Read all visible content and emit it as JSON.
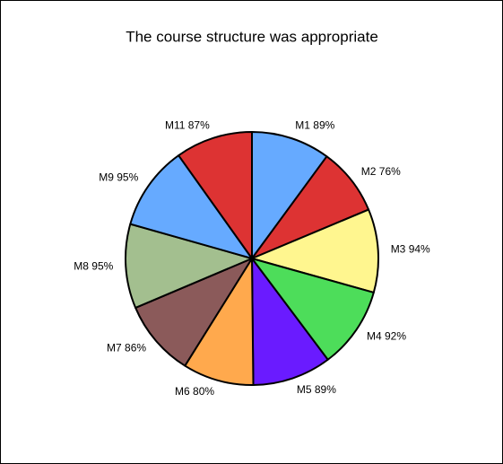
{
  "chart_data": {
    "type": "pie",
    "title": "The course structure was appropriate",
    "categories": [
      "M1",
      "M2",
      "M3",
      "M4",
      "M5",
      "M6",
      "M7",
      "M8",
      "M9",
      "M11"
    ],
    "values": [
      89,
      76,
      94,
      92,
      89,
      80,
      86,
      95,
      95,
      87
    ],
    "value_labels": [
      "89%",
      "76%",
      "94%",
      "92%",
      "89%",
      "80%",
      "86%",
      "95%",
      "95%",
      "87%"
    ],
    "colors": [
      "#66aaff",
      "#dd3333",
      "#fff68f",
      "#4ddd5a",
      "#6a1bff",
      "#ffa94d",
      "#8b5a5a",
      "#a3bf8f",
      "#66aaff",
      "#dd3333"
    ]
  }
}
